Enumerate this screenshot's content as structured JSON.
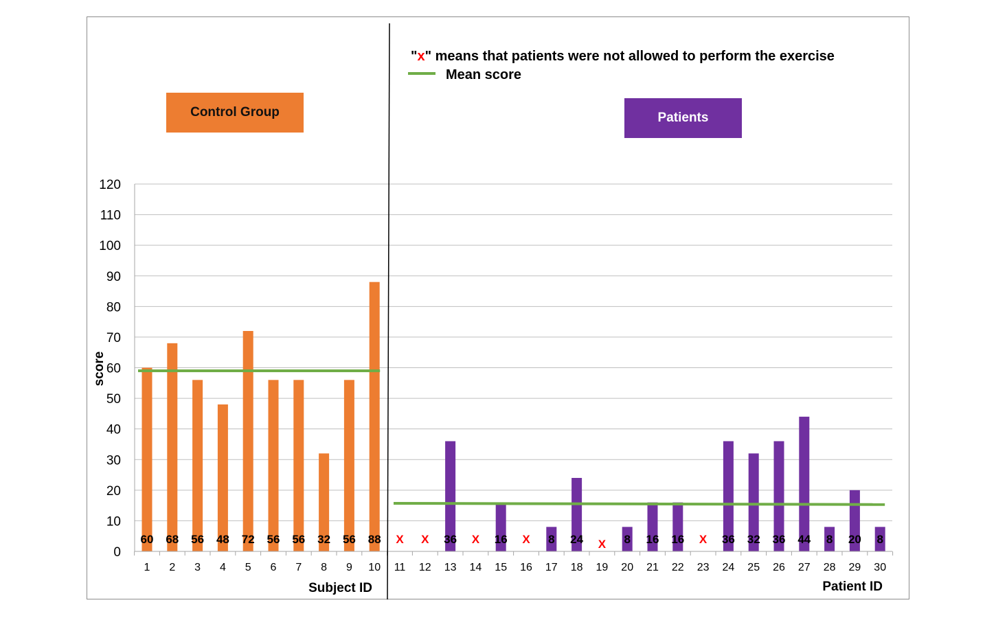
{
  "chart_data": {
    "type": "bar",
    "ylabel": "score",
    "ylim": [
      0,
      120
    ],
    "yticks": [
      0,
      10,
      20,
      30,
      40,
      50,
      60,
      70,
      80,
      90,
      100,
      110,
      120
    ],
    "grid": true,
    "legend": {
      "note_prefix": "\"",
      "note_mark": "x",
      "note_suffix": "\" means that patients were not allowed to perform the exercise",
      "mean_label": "Mean score"
    },
    "colors": {
      "control": "#ED7D31",
      "patients": "#7030A0",
      "mean": "#70AD47",
      "x_mark": "#FF0000",
      "grid": "#bfbfbf"
    },
    "control": {
      "group_label": "Control Group",
      "xlabel": "Subject ID",
      "categories": [
        "1",
        "2",
        "3",
        "4",
        "5",
        "6",
        "7",
        "8",
        "9",
        "10"
      ],
      "values": [
        60,
        68,
        56,
        48,
        72,
        56,
        56,
        32,
        56,
        88
      ],
      "mean": 59
    },
    "patients": {
      "group_label": "Patients",
      "xlabel": "Patient ID",
      "categories": [
        "11",
        "12",
        "13",
        "14",
        "15",
        "16",
        "17",
        "18",
        "19",
        "20",
        "21",
        "22",
        "23",
        "24",
        "25",
        "26",
        "27",
        "28",
        "29",
        "30"
      ],
      "values": [
        null,
        null,
        36,
        null,
        16,
        null,
        8,
        24,
        null,
        8,
        16,
        16,
        null,
        36,
        32,
        36,
        44,
        8,
        20,
        8
      ],
      "mean_start": 15.7,
      "mean_end": 15.3
    }
  }
}
